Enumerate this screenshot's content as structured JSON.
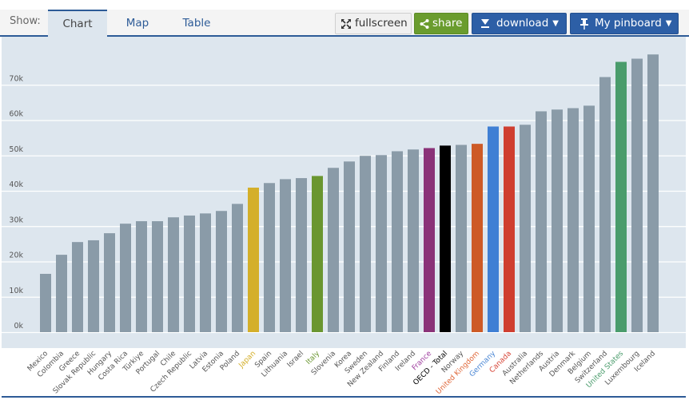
{
  "toolbar": {
    "show_label": "Show:",
    "tabs": [
      {
        "label": "Chart",
        "active": true
      },
      {
        "label": "Map",
        "active": false
      },
      {
        "label": "Table",
        "active": false
      }
    ],
    "fullscreen_label": "fullscreen",
    "share_label": "share",
    "download_label": "download",
    "pinboard_label": "My pinboard",
    "icons": {
      "fullscreen": "expand-arrows-icon",
      "share": "share-icon",
      "download": "download-icon",
      "pinboard": "pin-icon",
      "caret": "caret-down-icon"
    }
  },
  "colors": {
    "default_bar": "#8a9ba8",
    "Japan": "#d4af2a",
    "Italy": "#6a9630",
    "France": "#8a3278",
    "OECD - Total": "#000000",
    "United Kingdom": "#cd5a26",
    "Germany": "#3f7fd4",
    "Canada": "#cf3e30",
    "United States": "#4a9c6c",
    "default_label": "#555555",
    "Japan_label": "#d4af2a",
    "Italy_label": "#6a9630",
    "France_label": "#a040a0",
    "OECD - Total_label": "#000000",
    "United Kingdom_label": "#e0683a",
    "Germany_label": "#4a86d4",
    "Canada_label": "#d8483a",
    "United States_label": "#4a9c6c"
  },
  "chart_data": {
    "type": "bar",
    "title": "",
    "xlabel": "",
    "ylabel": "",
    "ylim": [
      0,
      82000
    ],
    "grid": true,
    "yticks": [
      0,
      10000,
      20000,
      30000,
      40000,
      50000,
      60000,
      70000
    ],
    "ytick_labels": [
      "0k",
      "10k",
      "20k",
      "30k",
      "40k",
      "50k",
      "60k",
      "70k"
    ],
    "categories": [
      "Mexico",
      "Colombia",
      "Greece",
      "Slovak Republic",
      "Hungary",
      "Costa Rica",
      "Türkiye",
      "Portugal",
      "Chile",
      "Czech Republic",
      "Latvia",
      "Estonia",
      "Poland",
      "Japan",
      "Spain",
      "Lithuania",
      "Israel",
      "Italy",
      "Slovenia",
      "Korea",
      "Sweden",
      "New Zealand",
      "Finland",
      "Ireland",
      "France",
      "OECD - Total",
      "Norway",
      "United Kingdom",
      "Germany",
      "Canada",
      "Australia",
      "Netherlands",
      "Austria",
      "Denmark",
      "Belgium",
      "Switzerland",
      "United States",
      "Luxembourg",
      "Iceland"
    ],
    "values": [
      16500,
      21900,
      25500,
      26000,
      28000,
      30700,
      31400,
      31400,
      32500,
      33000,
      33600,
      34300,
      36300,
      40900,
      42200,
      43300,
      43600,
      44200,
      46500,
      48300,
      49900,
      50100,
      51200,
      51700,
      52100,
      52800,
      53000,
      53300,
      58200,
      58200,
      58700,
      62500,
      63000,
      63400,
      64100,
      72200,
      76500,
      77400,
      78600
    ]
  }
}
